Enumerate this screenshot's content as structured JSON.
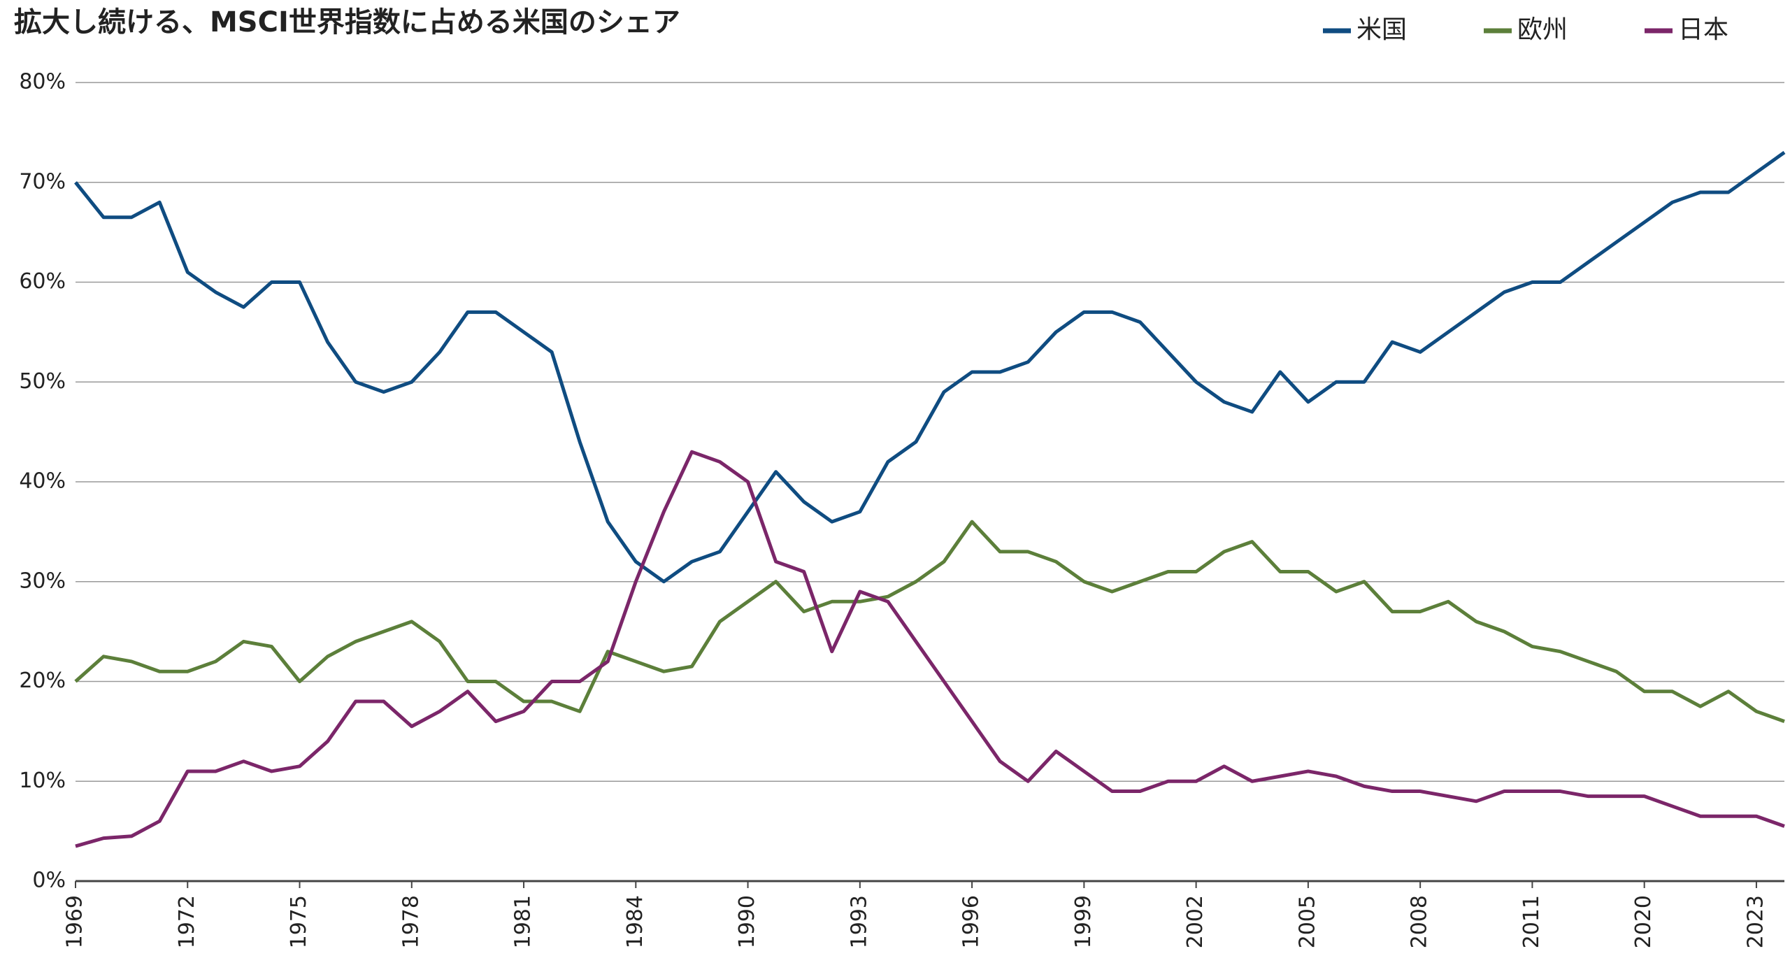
{
  "chart_data": {
    "type": "line",
    "title": "拡大し続ける、MSCI世界指数に占める米国のシェア",
    "categories": [
      "1969",
      null,
      null,
      null,
      "1972",
      null,
      null,
      null,
      "1975",
      null,
      null,
      null,
      "1978",
      null,
      null,
      null,
      "1981",
      null,
      null,
      null,
      "1984",
      null,
      null,
      null,
      "1990",
      null,
      null,
      null,
      "1993",
      null,
      null,
      null,
      "1996",
      null,
      null,
      null,
      "1999",
      null,
      null,
      null,
      "2002",
      null,
      null,
      null,
      "2005",
      null,
      null,
      null,
      "2008",
      null,
      null,
      null,
      "2011",
      null,
      null,
      null,
      "2020",
      null,
      null,
      null,
      "2023",
      null
    ],
    "series": [
      {
        "name": "米国",
        "color": "#0f4c81",
        "values": [
          70,
          66.5,
          66.5,
          68,
          61,
          59,
          57.5,
          60,
          60,
          54,
          50,
          49,
          50,
          53,
          57,
          57,
          55,
          53,
          44,
          36,
          32,
          30,
          32,
          33,
          37,
          41,
          38,
          36,
          37,
          42,
          44,
          49,
          51,
          51,
          52,
          55,
          57,
          57,
          56,
          53,
          50,
          48,
          47,
          51,
          48,
          50,
          50,
          54,
          53,
          55,
          57,
          59,
          60,
          60,
          62,
          64,
          66,
          68,
          69,
          69,
          71,
          73
        ]
      },
      {
        "name": "欧州",
        "color": "#5c7f3a",
        "values": [
          20,
          22.5,
          22,
          21,
          21,
          22,
          24,
          23.5,
          20,
          22.5,
          24,
          25,
          26,
          24,
          20,
          20,
          18,
          18,
          17,
          23,
          22,
          21,
          21.5,
          26,
          28,
          30,
          27,
          28,
          28,
          28.5,
          30,
          32,
          36,
          33,
          33,
          32,
          30,
          29,
          30,
          31,
          31,
          33,
          34,
          31,
          31,
          29,
          30,
          27,
          27,
          28,
          26,
          25,
          23.5,
          23,
          22,
          21,
          19,
          19,
          17.5,
          19,
          17,
          16
        ]
      },
      {
        "name": "日本",
        "color": "#7b2669",
        "values": [
          3.5,
          4.3,
          4.5,
          6,
          11,
          11,
          12,
          11,
          11.5,
          14,
          18,
          18,
          15.5,
          17,
          19,
          16,
          17,
          20,
          20,
          22,
          30,
          37,
          43,
          42,
          40,
          32,
          31,
          23,
          29,
          28,
          24,
          20,
          16,
          12,
          10,
          13,
          11,
          9,
          9,
          10,
          10,
          11.5,
          10,
          10.5,
          11,
          10.5,
          9.5,
          9,
          9,
          8.5,
          8,
          9,
          9,
          9,
          8.5,
          8.5,
          8.5,
          7.5,
          6.5,
          6.5,
          6.5,
          5.5
        ]
      }
    ],
    "ylim": [
      0,
      80
    ],
    "yticks": [
      {
        "value": 0,
        "label": "0%"
      },
      {
        "value": 10,
        "label": "10%"
      },
      {
        "value": 20,
        "label": "20%"
      },
      {
        "value": 30,
        "label": "30%"
      },
      {
        "value": 40,
        "label": "40%"
      },
      {
        "value": 50,
        "label": "50%"
      },
      {
        "value": 60,
        "label": "60%"
      },
      {
        "value": 70,
        "label": "70%"
      },
      {
        "value": 80,
        "label": "80%"
      }
    ],
    "grid": true,
    "legend": "top-right"
  }
}
